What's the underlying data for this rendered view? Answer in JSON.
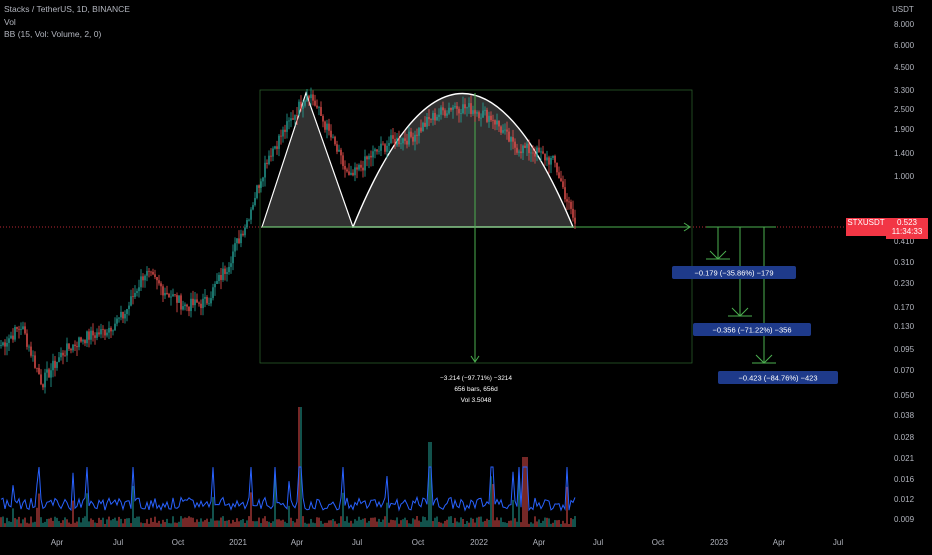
{
  "header": {
    "symbol_line": "Stacks / TetherUS, 1D, BINANCE",
    "vol_line": "Vol",
    "bb_line": "BB (15, Vol: Volume, 2, 0)"
  },
  "price_axis": {
    "unit": "USDT",
    "current_price": "0.523",
    "countdown": "11:34:33",
    "symbol_tag": "STXUSDT"
  },
  "colors": {
    "background": "#000000",
    "up": "#26a69a",
    "down": "#ef5350",
    "pattern_line": "#4caf50",
    "pattern_fill": "#5a5a5a",
    "bb_line": "#2962ff",
    "label_bg": "#1e3a8a"
  },
  "annotations": {
    "main_measure": [
      "−3.214 (−97.71%) −3214",
      "656 bars, 656d",
      "Vol 3.5048"
    ],
    "targets": [
      "−0.179 (−35.86%) −179",
      "−0.356 (−71.22%) −356",
      "−0.423 (−84.76%) −423"
    ]
  },
  "chart_data": {
    "type": "candlestick",
    "x_ticks": [
      "Apr",
      "Jul",
      "Oct",
      "2021",
      "Apr",
      "Jul",
      "Oct",
      "2022",
      "Apr",
      "Jul",
      "Oct",
      "2023",
      "Apr",
      "Jul"
    ],
    "y_ticks": [
      "8.000",
      "6.000",
      "4.500",
      "3.300",
      "2.500",
      "1.900",
      "1.400",
      "1.000",
      "0.550",
      "0.410",
      "0.310",
      "0.230",
      "0.170",
      "0.130",
      "0.095",
      "0.070",
      "0.050",
      "0.038",
      "0.028",
      "0.021",
      "0.016",
      "0.012",
      "0.009"
    ],
    "log_scale": true,
    "price_series_approx": [
      [
        "2020-01",
        0.1
      ],
      [
        "2020-02",
        0.13
      ],
      [
        "2020-03",
        0.06
      ],
      [
        "2020-04",
        0.09
      ],
      [
        "2020-05",
        0.11
      ],
      [
        "2020-06",
        0.12
      ],
      [
        "2020-07",
        0.15
      ],
      [
        "2020-08",
        0.27
      ],
      [
        "2020-09",
        0.21
      ],
      [
        "2020-10",
        0.17
      ],
      [
        "2020-11",
        0.18
      ],
      [
        "2020-12",
        0.29
      ],
      [
        "2021-01",
        0.55
      ],
      [
        "2021-02",
        1.3
      ],
      [
        "2021-03",
        2.0
      ],
      [
        "2021-04",
        3.2
      ],
      [
        "2021-05",
        1.8
      ],
      [
        "2021-06",
        0.95
      ],
      [
        "2021-07",
        1.3
      ],
      [
        "2021-08",
        1.6
      ],
      [
        "2021-09",
        1.7
      ],
      [
        "2021-10",
        2.2
      ],
      [
        "2021-11",
        2.6
      ],
      [
        "2021-12",
        2.5
      ],
      [
        "2022-01",
        2.2
      ],
      [
        "2022-02",
        1.5
      ],
      [
        "2022-03",
        1.4
      ],
      [
        "2022-04",
        1.2
      ],
      [
        "2022-05",
        0.52
      ]
    ],
    "pattern": "cup-and-handle-style measured move (inverted)"
  }
}
